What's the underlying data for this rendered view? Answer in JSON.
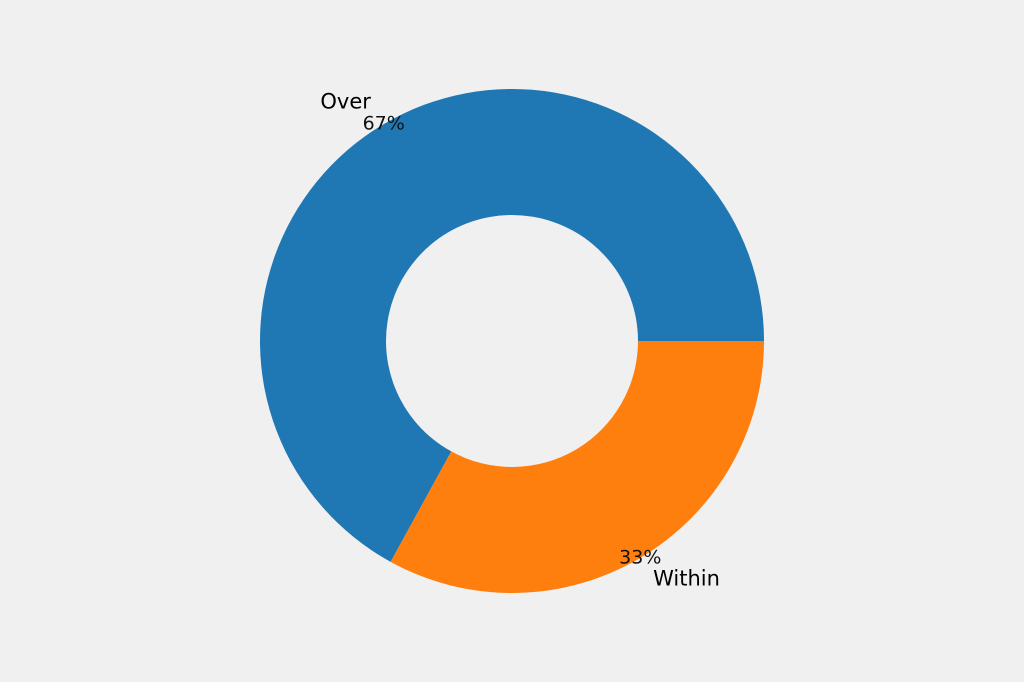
{
  "chart_data": {
    "type": "pie",
    "variant": "donut",
    "title": "",
    "start_angle_deg": 0,
    "direction": "counterclockwise",
    "slices": [
      {
        "label": "Over",
        "value": 67,
        "display": "67%",
        "color": "#1f77b4"
      },
      {
        "label": "Within",
        "value": 33,
        "display": "33%",
        "color": "#ff7f0e"
      }
    ]
  }
}
